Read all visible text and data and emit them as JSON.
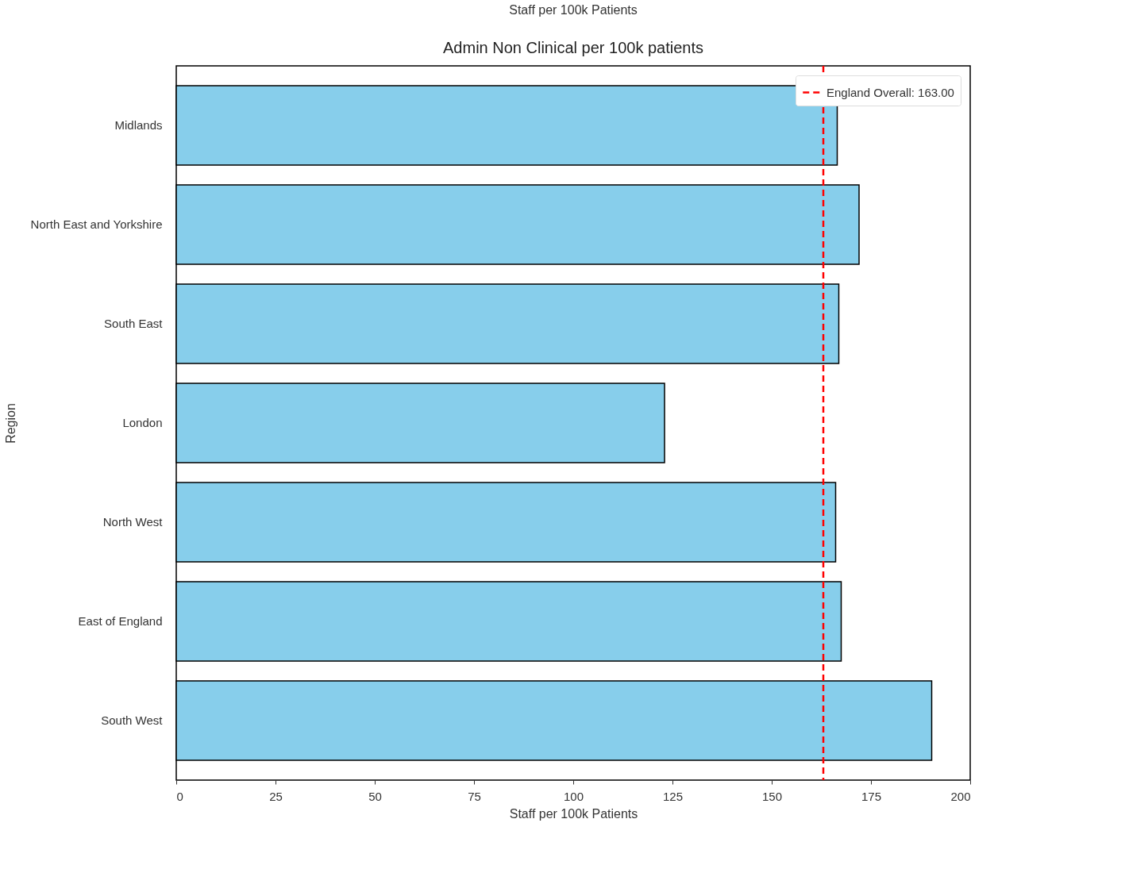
{
  "chart_data": {
    "type": "bar",
    "orientation": "horizontal",
    "title": "Admin Non Clinical per 100k patients",
    "xlabel": "Staff per 100k Patients",
    "ylabel": "Region",
    "categories": [
      "Midlands",
      "North East and Yorkshire",
      "South East",
      "London",
      "North West",
      "East of England",
      "South West"
    ],
    "values": [
      166.5,
      172.0,
      166.9,
      123.0,
      166.1,
      167.5,
      190.3
    ],
    "color": "#87ceeb",
    "xlim": [
      0,
      200
    ],
    "xticks": [
      0,
      25,
      50,
      75,
      100,
      125,
      150,
      175,
      200
    ],
    "grid": false,
    "legend": "top right",
    "ref_lines": [
      {
        "axis": "x",
        "value": 163,
        "label": "England Overall: 163.00",
        "color": "#ff0000",
        "line_style": "dashed"
      }
    ],
    "annotations": [
      "Staff per 100k Patients"
    ]
  }
}
